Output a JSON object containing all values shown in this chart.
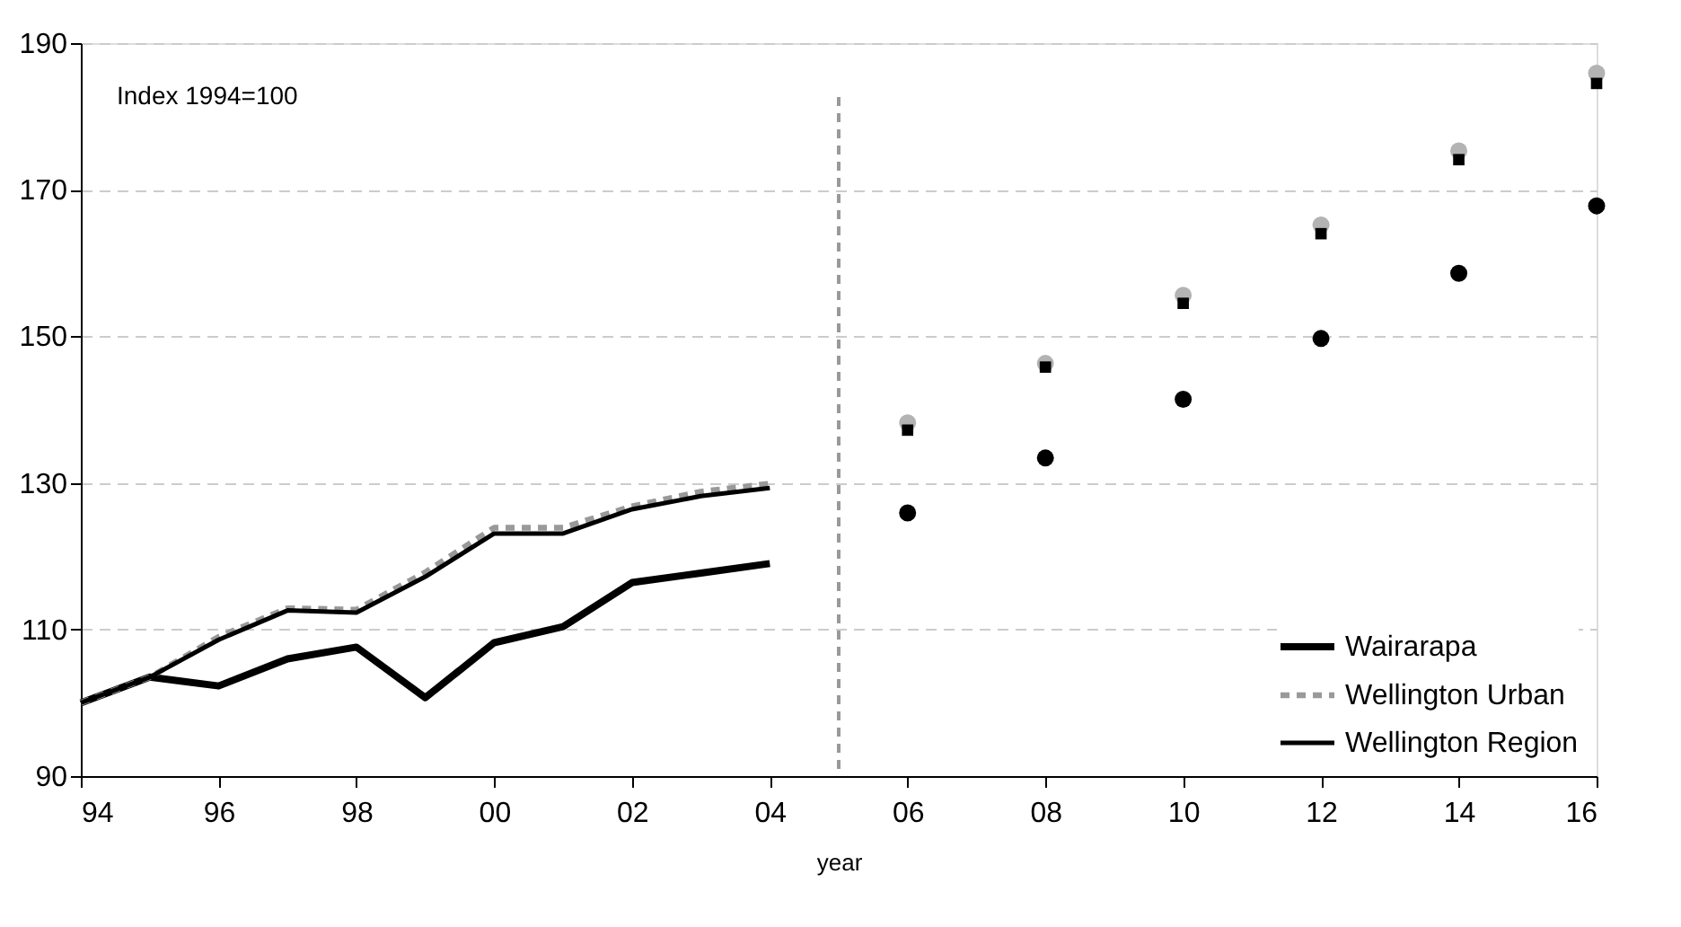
{
  "chart_data": {
    "type": "line",
    "xlabel": "year",
    "annotations": [
      "Index 1994=100"
    ],
    "xlim": [
      1994,
      2016
    ],
    "xticks": [
      {
        "value": 1994,
        "label": "94"
      },
      {
        "value": 1996,
        "label": "96"
      },
      {
        "value": 1998,
        "label": "98"
      },
      {
        "value": 2000,
        "label": "00"
      },
      {
        "value": 2002,
        "label": "02"
      },
      {
        "value": 2004,
        "label": "04"
      },
      {
        "value": 2006,
        "label": "06"
      },
      {
        "value": 2008,
        "label": "08"
      },
      {
        "value": 2010,
        "label": "10"
      },
      {
        "value": 2012,
        "label": "12"
      },
      {
        "value": 2014,
        "label": "14"
      },
      {
        "value": 2016,
        "label": "16"
      }
    ],
    "ylim": [
      90,
      190
    ],
    "yticks": [
      90,
      110,
      130,
      150,
      170,
      190
    ],
    "grid": "y",
    "legend": "bottom right",
    "ref_lines": [
      {
        "axis": "x",
        "value": 2005,
        "color": "#999999",
        "line_style": "dashed"
      }
    ],
    "series": [
      {
        "name": "Wairarapa",
        "color": "#000000",
        "line_style": "solid",
        "x": [
          1994,
          1995,
          1996,
          1997,
          1998,
          1999,
          2000,
          2001,
          2002,
          2003,
          2004
        ],
        "values": [
          100,
          103.5,
          102.3,
          106.0,
          107.6,
          100.7,
          108.2,
          110.4,
          116.4,
          117.7,
          119.0
        ]
      },
      {
        "name": "Wellington Urban",
        "color": "#999999",
        "line_style": "dashed",
        "x": [
          1994,
          1995,
          1996,
          1997,
          1998,
          1999,
          2000,
          2001,
          2002,
          2003,
          2004
        ],
        "values": [
          100,
          103.5,
          109.0,
          112.9,
          112.7,
          117.8,
          123.9,
          123.9,
          126.8,
          128.8,
          129.9
        ]
      },
      {
        "name": "Wellington Region",
        "color": "#000000",
        "line_style": "solid",
        "x": [
          1994,
          1995,
          1996,
          1997,
          1998,
          1999,
          2000,
          2001,
          2002,
          2003,
          2004
        ],
        "values": [
          100,
          103.5,
          108.6,
          112.6,
          112.3,
          117.2,
          123.1,
          123.1,
          126.4,
          128.2,
          129.3
        ]
      },
      {
        "type": "scatter",
        "marker": "circle",
        "color": "#000000",
        "x": [
          2006,
          2008,
          2010,
          2012,
          2014,
          2016
        ],
        "values": [
          125.9,
          133.4,
          141.4,
          149.7,
          158.6,
          167.8
        ]
      },
      {
        "type": "scatter",
        "marker": "circle",
        "color": "#b3b3b3",
        "x": [
          2006,
          2008,
          2010,
          2012,
          2014,
          2016
        ],
        "values": [
          138.2,
          146.3,
          155.6,
          165.2,
          175.3,
          185.9
        ]
      },
      {
        "type": "scatter",
        "marker": "square",
        "color": "#000000",
        "x": [
          2006,
          2008,
          2010,
          2012,
          2014,
          2016
        ],
        "values": [
          137.2,
          145.8,
          154.5,
          164.0,
          174.1,
          184.5
        ]
      }
    ]
  }
}
